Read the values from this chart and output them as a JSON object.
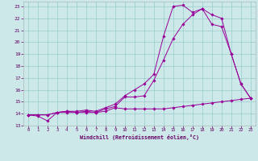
{
  "xlabel": "Windchill (Refroidissement éolien,°C)",
  "bg_color": "#cce8e8",
  "grid_color": "#99cccc",
  "line_color": "#990099",
  "xlim": [
    -0.5,
    23.5
  ],
  "ylim": [
    13,
    23.4
  ],
  "xticks": [
    0,
    1,
    2,
    3,
    4,
    5,
    6,
    7,
    8,
    9,
    10,
    11,
    12,
    13,
    14,
    15,
    16,
    17,
    18,
    19,
    20,
    21,
    22,
    23
  ],
  "yticks": [
    13,
    14,
    15,
    16,
    17,
    18,
    19,
    20,
    21,
    22,
    23
  ],
  "line1_x": [
    0,
    1,
    2,
    3,
    4,
    5,
    6,
    7,
    8,
    9,
    10,
    11,
    12,
    13,
    14,
    15,
    16,
    17,
    18,
    19,
    20,
    21,
    22,
    23
  ],
  "line1_y": [
    13.9,
    13.8,
    13.4,
    14.1,
    14.1,
    14.1,
    14.1,
    14.1,
    14.2,
    14.5,
    14.4,
    14.4,
    14.4,
    14.4,
    14.4,
    14.5,
    14.6,
    14.7,
    14.8,
    14.9,
    15.0,
    15.1,
    15.2,
    15.3
  ],
  "line2_x": [
    0,
    1,
    2,
    3,
    4,
    5,
    6,
    7,
    8,
    9,
    10,
    11,
    12,
    13,
    14,
    15,
    16,
    17,
    18,
    19,
    20,
    21,
    22,
    23
  ],
  "line2_y": [
    13.9,
    13.9,
    13.9,
    14.1,
    14.2,
    14.1,
    14.2,
    14.1,
    14.4,
    14.6,
    15.4,
    15.4,
    15.5,
    16.8,
    18.5,
    20.3,
    21.5,
    22.3,
    22.8,
    22.3,
    22.0,
    19.0,
    16.5,
    15.3
  ],
  "line3_x": [
    0,
    1,
    2,
    3,
    4,
    5,
    6,
    7,
    8,
    9,
    10,
    11,
    12,
    13,
    14,
    15,
    16,
    17,
    18,
    19,
    20,
    21,
    22,
    23
  ],
  "line3_y": [
    13.9,
    13.9,
    13.9,
    14.1,
    14.2,
    14.2,
    14.3,
    14.2,
    14.5,
    14.8,
    15.5,
    16.0,
    16.5,
    17.3,
    20.5,
    23.0,
    23.1,
    22.5,
    22.8,
    21.5,
    21.3,
    19.0,
    16.5,
    15.3
  ]
}
